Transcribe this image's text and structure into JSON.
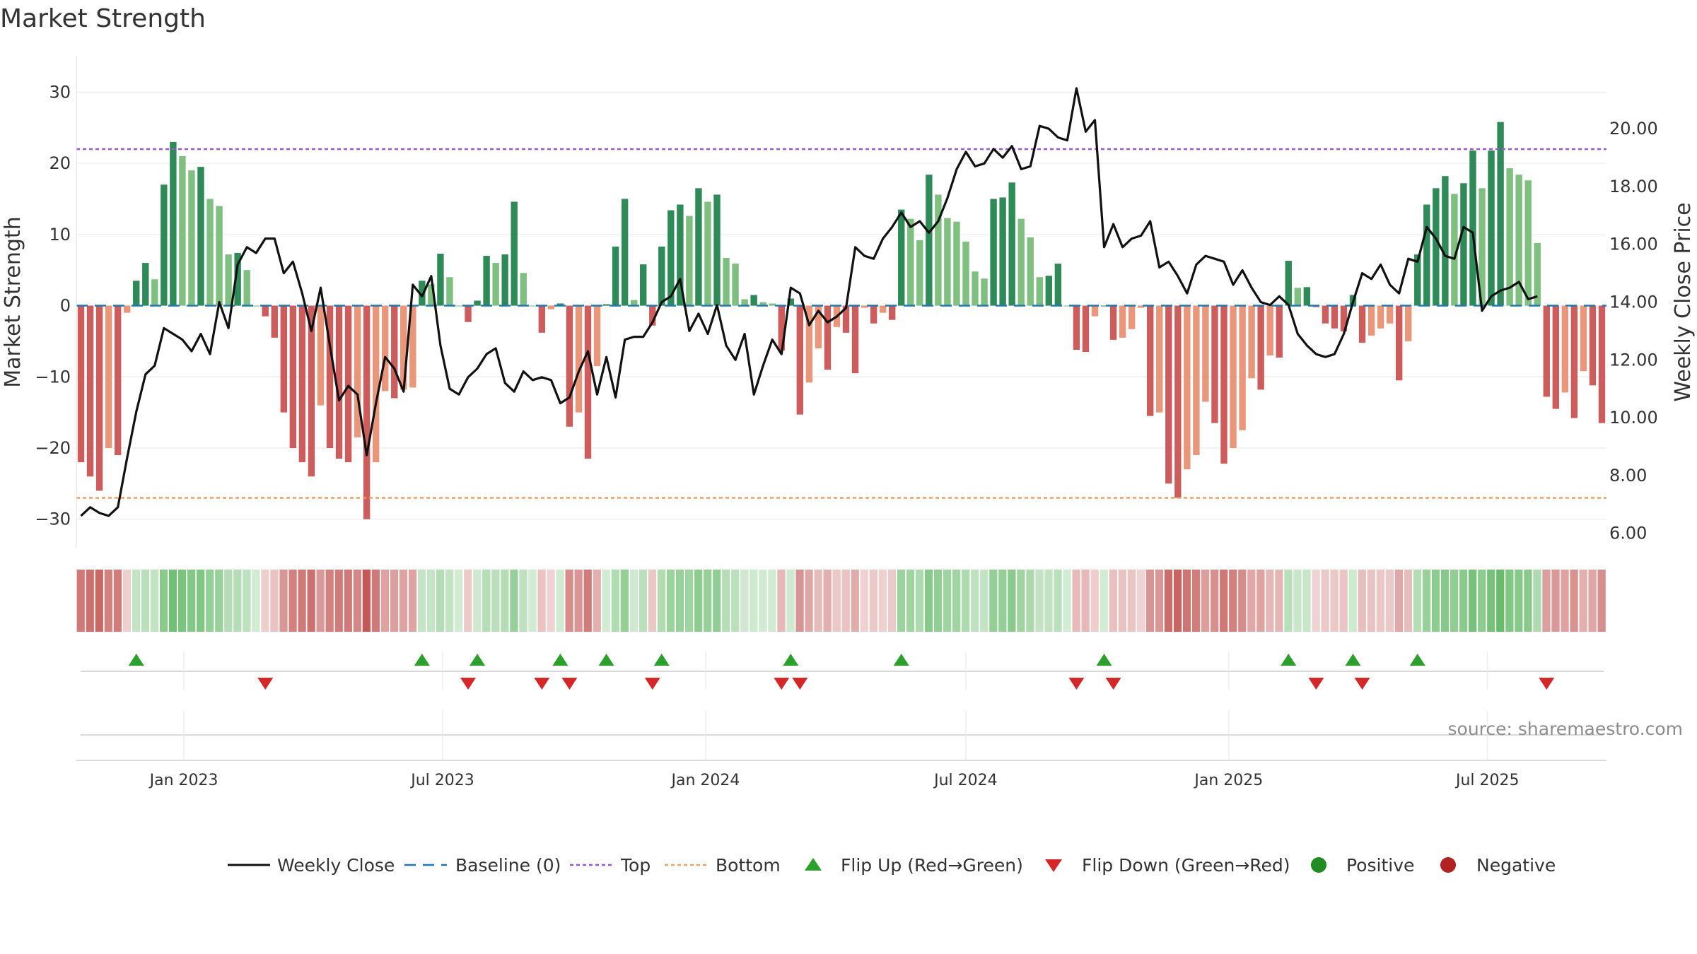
{
  "chart_data": {
    "type": "bar",
    "title": "Market Strength",
    "ylabel_left": "Market Strength",
    "ylabel_right": "Weekly Close Price",
    "source": "source: sharemaestro.com",
    "ylim_left": [
      -34,
      35
    ],
    "ylim_right": [
      5.5,
      22.5
    ],
    "yticks_left": [
      "30",
      "20",
      "10",
      "0",
      "−10",
      "−20",
      "−30"
    ],
    "yticks_left_values": [
      30,
      20,
      10,
      0,
      -10,
      -20,
      -30
    ],
    "yticks_right": [
      "20.00",
      "18.00",
      "16.00",
      "14.00",
      "12.00",
      "10.00",
      "8.00",
      "6.00"
    ],
    "yticks_right_values": [
      20,
      18,
      16,
      14,
      12,
      10,
      8,
      6
    ],
    "x_start_date": "2022-10-21",
    "x_end_date": "2025-09-19",
    "xticks": [
      {
        "label": "Jan 2023",
        "date": "2023-01-01"
      },
      {
        "label": "Jul 2023",
        "date": "2023-07-01"
      },
      {
        "label": "Jan 2024",
        "date": "2024-01-01"
      },
      {
        "label": "Jul 2024",
        "date": "2024-07-01"
      },
      {
        "label": "Jan 2025",
        "date": "2025-01-01"
      },
      {
        "label": "Jul 2025",
        "date": "2025-07-01"
      }
    ],
    "top_line": 22,
    "bottom_line": -27,
    "strength": [
      -22,
      -24,
      -26,
      -20,
      -21,
      -1,
      3.5,
      6,
      3.7,
      17,
      23,
      21,
      19,
      19.5,
      15,
      14,
      7.2,
      7.4,
      5,
      0,
      -1.5,
      -4.5,
      -15,
      -20,
      -22,
      -24,
      -14,
      -20,
      -21.5,
      -22,
      -18.5,
      -30,
      -22,
      -12,
      -13,
      -11.8,
      -11.5,
      3.5,
      3,
      7.3,
      4,
      0,
      -2.3,
      0.7,
      7,
      6,
      7.2,
      14.6,
      4.6,
      0,
      -3.8,
      -0.5,
      0.3,
      -17,
      -15,
      -21.5,
      -8.5,
      0.2,
      8.3,
      15,
      0.8,
      5.8,
      -2.8,
      8.3,
      13.4,
      14.2,
      12.6,
      16.5,
      14.6,
      15.6,
      6.7,
      5.9,
      0.9,
      1.5,
      0.5,
      0.3,
      -6.3,
      1,
      -15.3,
      -10.8,
      -6,
      -9,
      -3,
      -3.8,
      -9.5,
      -0.3,
      -2.5,
      -1,
      -2,
      13.5,
      12.2,
      9.2,
      18.4,
      15.6,
      12.3,
      11.8,
      9,
      4.8,
      3.8,
      15,
      15.2,
      17.3,
      12.2,
      9.6,
      4,
      4.2,
      5.9,
      0,
      -6.2,
      -6.5,
      -1.5,
      0,
      -4.8,
      -4.5,
      -3.3,
      -0.3,
      -15.5,
      -15,
      -25,
      -27,
      -23,
      -21,
      -13.5,
      -16.5,
      -22.2,
      -20,
      -17.5,
      -10.2,
      -11.8,
      -7,
      -7.3,
      6.3,
      2.5,
      2.6,
      -0.2,
      -2.5,
      -3.2,
      -3.6,
      1.5,
      -5.2,
      -4.2,
      -3.2,
      -2.5,
      -10.5,
      -5,
      7.2,
      14.2,
      16.5,
      18.2,
      15.7,
      17.2,
      21.8,
      16.5,
      21.8,
      25.8,
      19.3,
      18.4,
      17.6,
      8.8,
      -12.8,
      -14.5,
      -12.2,
      -15.8,
      -9.2,
      -11.2,
      -16.5
    ],
    "weekly_close": [
      6.6,
      6.9,
      6.7,
      6.6,
      6.9,
      8.6,
      10.2,
      11.5,
      11.8,
      13.1,
      12.9,
      12.7,
      12.3,
      12.9,
      12.2,
      14,
      13.1,
      15.3,
      15.9,
      15.7,
      16.2,
      16.2,
      15,
      15.4,
      14.3,
      13,
      14.5,
      12.5,
      10.6,
      11.1,
      10.8,
      8.7,
      10.5,
      12.1,
      11.7,
      10.9,
      14.6,
      14.2,
      14.9,
      12.5,
      11,
      10.8,
      11.4,
      11.7,
      12.2,
      12.4,
      11.2,
      10.9,
      11.6,
      11.3,
      11.4,
      11.3,
      10.5,
      10.7,
      11.6,
      12.3,
      10.8,
      12.1,
      10.7,
      12.7,
      12.8,
      12.8,
      13.3,
      14,
      14.2,
      14.8,
      13,
      13.6,
      12.9,
      13.9,
      12.5,
      12,
      12.9,
      10.8,
      11.8,
      12.7,
      12.2,
      14.5,
      14.3,
      13.2,
      13.7,
      13.3,
      13.5,
      13.8,
      15.9,
      15.6,
      15.5,
      16.2,
      16.6,
      17.1,
      16.6,
      16.8,
      16.4,
      16.8,
      17.6,
      18.6,
      19.2,
      18.7,
      18.8,
      19.3,
      19,
      19.4,
      18.6,
      18.7,
      20.1,
      20,
      19.7,
      19.6,
      21.4,
      19.9,
      20.3,
      15.9,
      16.7,
      15.9,
      16.2,
      16.3,
      16.8,
      15.2,
      15.4,
      14.9,
      14.3,
      15.3,
      15.6,
      15.5,
      15.4,
      14.6,
      15.1,
      14.5,
      14,
      13.9,
      14.2,
      13.9,
      12.9,
      12.5,
      12.2,
      12.1,
      12.2,
      12.9,
      14,
      15,
      14.8,
      15.3,
      14.6,
      14.3,
      15.5,
      15.4,
      16.6,
      16.2,
      15.6,
      15.5,
      16.6,
      16.4,
      13.7,
      14.2,
      14.4,
      14.5,
      14.7,
      14.1,
      14.2
    ]
  },
  "legend": [
    {
      "name": "weekly-close",
      "label": "Weekly Close"
    },
    {
      "name": "baseline",
      "label": "Baseline (0)"
    },
    {
      "name": "top",
      "label": "Top"
    },
    {
      "name": "bottom",
      "label": "Bottom"
    },
    {
      "name": "flip-up",
      "label": "Flip Up (Red→Green)"
    },
    {
      "name": "flip-down",
      "label": "Flip Down (Green→Red)"
    },
    {
      "name": "positive",
      "label": "Positive"
    },
    {
      "name": "negative",
      "label": "Negative"
    }
  ],
  "colors": {
    "green_dark": "#2e8b57",
    "green_light": "#7fbf7f",
    "red_dark": "#cd5c5c",
    "red_light": "#e9967a",
    "close_line": "#111111",
    "baseline": "#1f77b4",
    "top": "#9b59d0",
    "bottom": "#f0a060",
    "flip_up": "#2ca02c",
    "flip_down": "#d62728",
    "positive": "#228b22",
    "negative": "#b22222"
  }
}
